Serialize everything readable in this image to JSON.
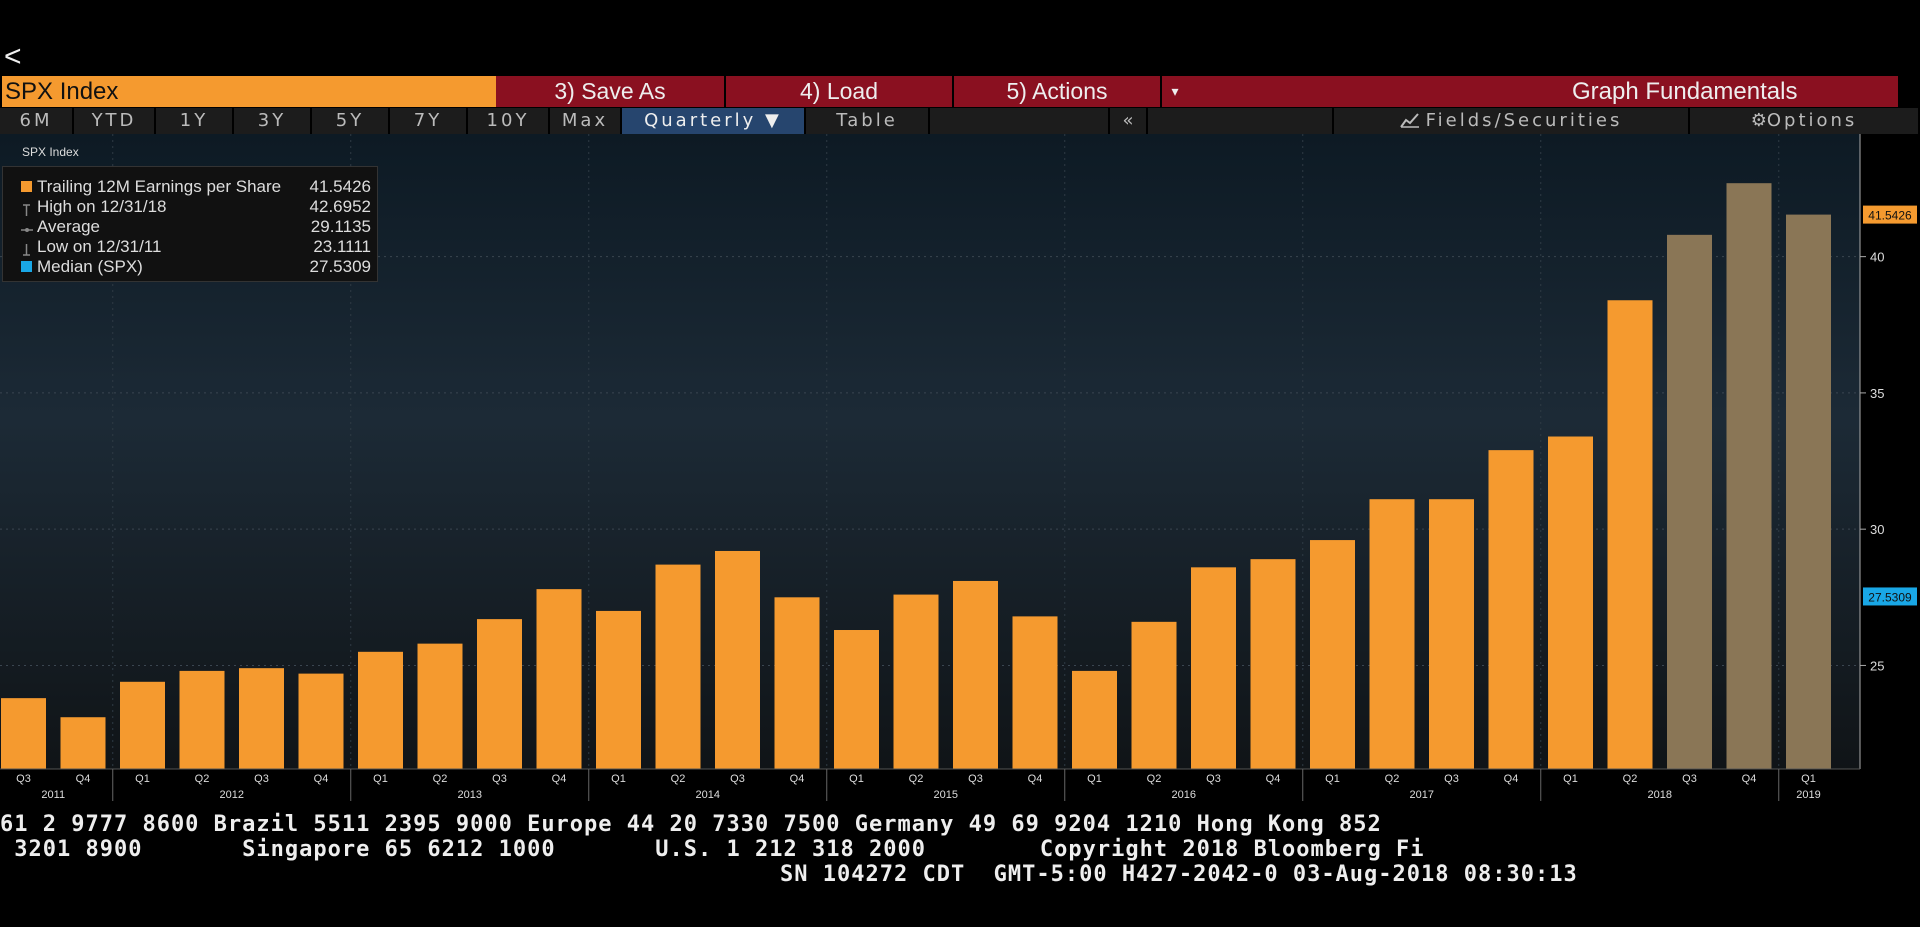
{
  "nav": {
    "back_label": "<"
  },
  "toolbar": {
    "security": "SPX Index",
    "save_as": "3) Save As",
    "load": "4) Load",
    "actions": "5) Actions",
    "caret": "▾",
    "graph_title": "Graph Fundamentals"
  },
  "tabs": {
    "items": [
      "6M",
      "YTD",
      "1Y",
      "3Y",
      "5Y",
      "7Y",
      "10Y",
      "Max",
      "Quarterly ▼",
      "Table"
    ],
    "collapse": "«",
    "fields": "Fields/Securities",
    "options": "Options"
  },
  "legend": {
    "header": "SPX Index",
    "rows": [
      {
        "label": "Trailing 12M Earnings per Share",
        "value": "41.5426",
        "color": "#f59a2f"
      },
      {
        "label": "High on 12/31/18",
        "value": "42.6952"
      },
      {
        "label": "Average",
        "value": "29.1135"
      },
      {
        "label": "Low on 12/31/11",
        "value": "23.1111"
      },
      {
        "label": "Median (SPX)",
        "value": "27.5309",
        "color": "#19a7e6"
      }
    ]
  },
  "chart_data": {
    "type": "bar",
    "title": "",
    "series_name": "Trailing 12M Earnings per Share",
    "quarters": [
      "Q3",
      "Q4",
      "Q1",
      "Q2",
      "Q3",
      "Q4",
      "Q1",
      "Q2",
      "Q3",
      "Q4",
      "Q1",
      "Q2",
      "Q3",
      "Q4",
      "Q1",
      "Q2",
      "Q3",
      "Q4",
      "Q1",
      "Q2",
      "Q3",
      "Q4",
      "Q1",
      "Q2",
      "Q3",
      "Q4",
      "Q1",
      "Q2",
      "Q3",
      "Q4",
      "Q1"
    ],
    "years": [
      {
        "label": "2011",
        "at": 0.5
      },
      {
        "label": "2012",
        "at": 3.5
      },
      {
        "label": "2013",
        "at": 7.5
      },
      {
        "label": "2014",
        "at": 11.5
      },
      {
        "label": "2015",
        "at": 15.5
      },
      {
        "label": "2016",
        "at": 19.5
      },
      {
        "label": "2017",
        "at": 23.5
      },
      {
        "label": "2018",
        "at": 27.5
      },
      {
        "label": "2019",
        "at": 30
      }
    ],
    "values": [
      23.8,
      23.1,
      24.4,
      24.8,
      24.9,
      24.7,
      25.5,
      25.8,
      26.7,
      27.8,
      27.0,
      28.7,
      29.2,
      27.5,
      26.3,
      27.6,
      28.1,
      26.8,
      24.8,
      26.6,
      28.6,
      28.9,
      29.6,
      31.1,
      31.1,
      32.9,
      33.4,
      38.4,
      40.8,
      42.6952,
      41.5426
    ],
    "estimate_from_index": 28,
    "ylim": [
      21.2,
      44.5
    ],
    "yticks": [
      25,
      30,
      35,
      40
    ],
    "last_value_label": "41.5426",
    "median_value": 27.5309,
    "median_label": "27.5309",
    "bar_color": "#f59a2f",
    "estimate_color": "#8a7656",
    "median_color": "#19a7e6",
    "grid": true
  },
  "footer": {
    "line1": "61 2 9777 8600 Brazil 5511 2395 9000 Europe 44 20 7330 7500 Germany 49 69 9204 1210 Hong Kong 852",
    "line2": " 3201 8900       Singapore 65 6212 1000       U.S. 1 212 318 2000        Copyright 2018 Bloomberg Fi",
    "line3": "SN 104272 CDT  GMT-5:00 H427-2042-0 03-Aug-2018 08:30:13"
  }
}
